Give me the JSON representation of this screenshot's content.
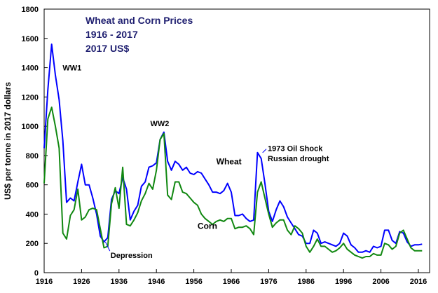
{
  "chart_data": {
    "type": "line",
    "title_lines": [
      "Wheat and Corn Prices",
      "1916 - 2017",
      "2017 US$"
    ],
    "ylabel": "US$ per tonne in 2017 dollars",
    "xlabel": "",
    "xlim": [
      1916,
      2019
    ],
    "ylim": [
      0,
      1800
    ],
    "x_ticks": [
      1916,
      1926,
      1936,
      1946,
      1956,
      1966,
      1976,
      1986,
      1996,
      2006,
      2016
    ],
    "y_ticks": [
      0,
      200,
      400,
      600,
      800,
      1000,
      1200,
      1400,
      1600,
      1800
    ],
    "grid": false,
    "legend": "none",
    "colors": {
      "Wheat": "#0000ff",
      "Corn": "#118811"
    },
    "series": [
      {
        "name": "Wheat",
        "x": [
          1916,
          1917,
          1918,
          1919,
          1920,
          1921,
          1922,
          1923,
          1924,
          1925,
          1926,
          1927,
          1928,
          1929,
          1930,
          1931,
          1932,
          1933,
          1934,
          1935,
          1936,
          1937,
          1938,
          1939,
          1940,
          1941,
          1942,
          1943,
          1944,
          1945,
          1946,
          1947,
          1948,
          1949,
          1950,
          1951,
          1952,
          1953,
          1954,
          1955,
          1956,
          1957,
          1958,
          1959,
          1960,
          1961,
          1962,
          1963,
          1964,
          1965,
          1966,
          1967,
          1968,
          1969,
          1970,
          1971,
          1972,
          1973,
          1974,
          1975,
          1976,
          1977,
          1978,
          1979,
          1980,
          1981,
          1982,
          1983,
          1984,
          1985,
          1986,
          1987,
          1988,
          1989,
          1990,
          1991,
          1992,
          1993,
          1994,
          1995,
          1996,
          1997,
          1998,
          1999,
          2000,
          2001,
          2002,
          2003,
          2004,
          2005,
          2006,
          2007,
          2008,
          2009,
          2010,
          2011,
          2012,
          2013,
          2014,
          2015,
          2016,
          2017
        ],
        "values": [
          850,
          1250,
          1560,
          1350,
          1180,
          900,
          480,
          510,
          490,
          620,
          740,
          600,
          600,
          510,
          400,
          250,
          210,
          240,
          500,
          560,
          540,
          650,
          570,
          360,
          420,
          460,
          590,
          620,
          720,
          730,
          750,
          910,
          960,
          760,
          700,
          760,
          740,
          700,
          720,
          680,
          670,
          690,
          680,
          640,
          600,
          550,
          550,
          540,
          560,
          610,
          550,
          390,
          390,
          400,
          370,
          350,
          360,
          820,
          780,
          610,
          420,
          350,
          430,
          490,
          450,
          380,
          340,
          300,
          260,
          250,
          200,
          200,
          290,
          270,
          200,
          210,
          200,
          190,
          180,
          200,
          270,
          250,
          190,
          170,
          140,
          140,
          150,
          140,
          180,
          170,
          180,
          290,
          290,
          220,
          200,
          280,
          270,
          210,
          180,
          190,
          190,
          195
        ],
        "label": "Wheat"
      },
      {
        "name": "Corn",
        "x": [
          1916,
          1917,
          1918,
          1919,
          1920,
          1921,
          1922,
          1923,
          1924,
          1925,
          1926,
          1927,
          1928,
          1929,
          1930,
          1931,
          1932,
          1933,
          1934,
          1935,
          1936,
          1937,
          1938,
          1939,
          1940,
          1941,
          1942,
          1943,
          1944,
          1945,
          1946,
          1947,
          1948,
          1949,
          1950,
          1951,
          1952,
          1953,
          1954,
          1955,
          1956,
          1957,
          1958,
          1959,
          1960,
          1961,
          1962,
          1963,
          1964,
          1965,
          1966,
          1967,
          1968,
          1969,
          1970,
          1971,
          1972,
          1973,
          1974,
          1975,
          1976,
          1977,
          1978,
          1979,
          1980,
          1981,
          1982,
          1983,
          1984,
          1985,
          1986,
          1987,
          1988,
          1989,
          1990,
          1991,
          1992,
          1993,
          1994,
          1995,
          1996,
          1997,
          1998,
          1999,
          2000,
          2001,
          2002,
          2003,
          2004,
          2005,
          2006,
          2007,
          2008,
          2009,
          2010,
          2011,
          2012,
          2013,
          2014,
          2015,
          2016,
          2017
        ],
        "values": [
          610,
          1050,
          1130,
          1000,
          850,
          270,
          230,
          390,
          430,
          570,
          360,
          380,
          430,
          440,
          430,
          300,
          170,
          180,
          470,
          580,
          440,
          720,
          330,
          320,
          360,
          410,
          490,
          540,
          610,
          570,
          700,
          910,
          950,
          530,
          500,
          620,
          620,
          550,
          540,
          510,
          480,
          460,
          400,
          370,
          350,
          330,
          350,
          360,
          350,
          370,
          370,
          300,
          310,
          310,
          320,
          300,
          260,
          550,
          620,
          510,
          400,
          310,
          340,
          360,
          360,
          290,
          260,
          320,
          300,
          270,
          180,
          140,
          180,
          230,
          180,
          180,
          160,
          140,
          150,
          170,
          200,
          160,
          140,
          120,
          110,
          100,
          110,
          110,
          130,
          120,
          120,
          200,
          190,
          160,
          180,
          270,
          290,
          230,
          170,
          150,
          150,
          150
        ],
        "label": "Corn"
      }
    ],
    "annotations": [
      {
        "text": "WW1",
        "x": 1920,
        "y": 1380
      },
      {
        "text": "WW2",
        "x": 1947,
        "y": 1000
      },
      {
        "text": "Depression",
        "x": 1933,
        "y": 100
      },
      {
        "text": "1973 Oil Shock",
        "x": 1975,
        "y": 830
      },
      {
        "text": "Russian drought",
        "x": 1975,
        "y": 760
      }
    ],
    "series_labels": [
      {
        "text": "Wheat",
        "x": 1962,
        "y": 740
      },
      {
        "text": "Corn",
        "x": 1957,
        "y": 300
      }
    ]
  }
}
